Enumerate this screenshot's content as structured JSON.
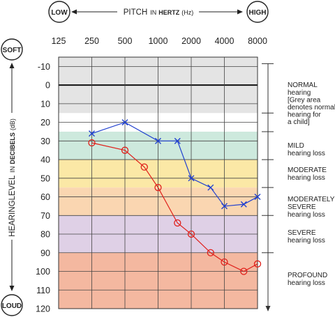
{
  "x_axis_title": {
    "main": "PITCH",
    "in": "IN",
    "bold": "HERTZ",
    "unit": "(Hz)",
    "low_label": "LOW",
    "high_label": "HIGH"
  },
  "y_axis_title": {
    "main": "HEARINGLEVEL",
    "in": "IN",
    "bold": "DECIBELS",
    "unit": "(dB)",
    "top_label": "SOFT",
    "bottom_label": "LOUD"
  },
  "annotations": [
    {
      "title": "NORMAL",
      "lines": [
        "hearing",
        "[Grey area",
        "denotes normal",
        "hearing for",
        "a child]"
      ]
    },
    {
      "title": "MILD",
      "lines": [
        "hearing loss"
      ]
    },
    {
      "title": "MODERATE",
      "lines": [
        "hearing loss"
      ]
    },
    {
      "title": "MODERATELY",
      "lines": [
        "SEVERE",
        "hearing loss"
      ]
    },
    {
      "title": "SEVERE",
      "lines": [
        "hearing loss"
      ]
    },
    {
      "title": "PROFOUND",
      "lines": [
        "hearing loss"
      ]
    }
  ],
  "chart_data": {
    "type": "line",
    "x_ticks": [
      "125",
      "250",
      "500",
      "1000",
      "2000",
      "4000",
      "8000"
    ],
    "x_tick_values": [
      125,
      250,
      500,
      1000,
      2000,
      4000,
      8000
    ],
    "x_scale": "log2",
    "y_ticks": [
      "-10",
      "0",
      "10",
      "20",
      "30",
      "40",
      "50",
      "60",
      "70",
      "80",
      "90",
      "100",
      "110",
      "120"
    ],
    "y_tick_values": [
      -10,
      0,
      10,
      20,
      30,
      40,
      50,
      60,
      70,
      80,
      90,
      100,
      110,
      120
    ],
    "ylim": [
      -15,
      120
    ],
    "y_inverted": true,
    "grid": true,
    "bands": [
      {
        "from": -15,
        "to": 15,
        "color": "#e4e4e4"
      },
      {
        "from": 25,
        "to": 40,
        "color": "#cde9dd"
      },
      {
        "from": 40,
        "to": 55,
        "color": "#fbe8a6"
      },
      {
        "from": 55,
        "to": 70,
        "color": "#fad6b1"
      },
      {
        "from": 70,
        "to": 90,
        "color": "#dfd0e6"
      },
      {
        "from": 90,
        "to": 120,
        "color": "#f4b8a0"
      }
    ],
    "series": [
      {
        "marker": "x",
        "color": "#1f3fcf",
        "points": [
          {
            "x": 250,
            "y": 26
          },
          {
            "x": 500,
            "y": 20
          },
          {
            "x": 1000,
            "y": 30
          },
          {
            "x": 1500,
            "y": 30
          },
          {
            "x": 2000,
            "y": 50
          },
          {
            "x": 3000,
            "y": 55
          },
          {
            "x": 4000,
            "y": 65
          },
          {
            "x": 6000,
            "y": 64
          },
          {
            "x": 8000,
            "y": 60
          }
        ]
      },
      {
        "marker": "o",
        "color": "#e0201b",
        "points": [
          {
            "x": 250,
            "y": 31
          },
          {
            "x": 500,
            "y": 35
          },
          {
            "x": 750,
            "y": 44
          },
          {
            "x": 1000,
            "y": 55
          },
          {
            "x": 1500,
            "y": 74
          },
          {
            "x": 2000,
            "y": 80
          },
          {
            "x": 3000,
            "y": 90
          },
          {
            "x": 4000,
            "y": 95
          },
          {
            "x": 6000,
            "y": 100
          },
          {
            "x": 8000,
            "y": 96
          }
        ]
      }
    ]
  }
}
